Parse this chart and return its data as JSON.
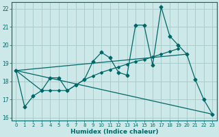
{
  "xlabel": "Humidex (Indice chaleur)",
  "bg_color": "#cce8e8",
  "grid_color": "#aacccc",
  "line_color": "#006666",
  "xlim": [
    -0.5,
    23.5
  ],
  "ylim": [
    15.85,
    22.35
  ],
  "yticks": [
    16,
    17,
    18,
    19,
    20,
    21,
    22
  ],
  "xticks": [
    0,
    1,
    2,
    3,
    4,
    5,
    6,
    7,
    8,
    9,
    10,
    11,
    12,
    13,
    14,
    15,
    16,
    17,
    18,
    19,
    20,
    21,
    22,
    23
  ],
  "series": [
    {
      "x": [
        0,
        1,
        2,
        3,
        4,
        5,
        6,
        7,
        8,
        9,
        10,
        11,
        12,
        13,
        14,
        15,
        16,
        17,
        18,
        19,
        20,
        21,
        22,
        23
      ],
      "y": [
        18.6,
        16.6,
        17.2,
        17.5,
        18.2,
        18.2,
        17.5,
        17.8,
        18.1,
        19.1,
        19.6,
        19.3,
        18.5,
        18.35,
        21.1,
        21.1,
        18.9,
        22.1,
        20.5,
        20.0,
        19.5,
        18.1,
        17.0,
        16.2
      ],
      "has_markers": true
    },
    {
      "x": [
        0,
        20
      ],
      "y": [
        18.6,
        19.5
      ],
      "has_markers": false
    },
    {
      "x": [
        0,
        23
      ],
      "y": [
        18.6,
        16.2
      ],
      "has_markers": false
    },
    {
      "x": [
        0,
        3,
        4,
        5,
        6,
        7,
        8,
        9,
        10,
        11,
        12,
        13,
        14,
        15,
        16,
        17,
        18,
        19
      ],
      "y": [
        18.6,
        17.5,
        17.5,
        17.5,
        17.5,
        17.8,
        18.1,
        18.3,
        18.5,
        18.65,
        18.8,
        18.95,
        19.1,
        19.2,
        19.35,
        19.5,
        19.65,
        19.8
      ],
      "has_markers": true
    }
  ]
}
